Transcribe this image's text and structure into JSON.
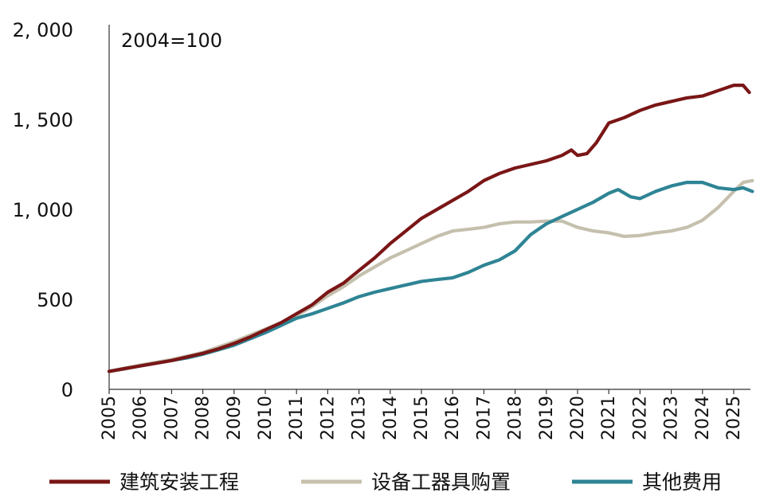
{
  "chart_data": {
    "type": "line",
    "title": "",
    "annotation": "2004=100",
    "xlabel": "",
    "ylabel": "",
    "xlim": [
      2005,
      2025.6
    ],
    "ylim": [
      0,
      2000
    ],
    "y_ticks": [
      {
        "value": 0,
        "label": "0"
      },
      {
        "value": 500,
        "label": "500"
      },
      {
        "value": 1000,
        "label": "1, 000"
      },
      {
        "value": 1500,
        "label": "1, 500"
      },
      {
        "value": 2000,
        "label": "2, 000"
      }
    ],
    "x_ticks": [
      2005,
      2006,
      2007,
      2008,
      2009,
      2010,
      2011,
      2012,
      2013,
      2014,
      2015,
      2016,
      2017,
      2018,
      2019,
      2020,
      2021,
      2022,
      2023,
      2024,
      2025
    ],
    "x_tick_labels": [
      "2005",
      "2006",
      "2007",
      "2008",
      "2009",
      "2010",
      "2011",
      "2012",
      "2013",
      "2014",
      "2015",
      "2016",
      "2017",
      "2018",
      "2019",
      "2020",
      "2021",
      "2022",
      "2023",
      "2024",
      "2025"
    ],
    "grid": false,
    "legend_position": "bottom",
    "series": [
      {
        "name": "建筑安装工程",
        "color": "#7a1616",
        "x": [
          2005,
          2005.5,
          2006,
          2006.5,
          2007,
          2007.5,
          2008,
          2008.5,
          2009,
          2009.5,
          2010,
          2010.5,
          2011,
          2011.5,
          2012,
          2012.5,
          2013,
          2013.5,
          2014,
          2014.5,
          2015,
          2015.5,
          2016,
          2016.5,
          2017,
          2017.5,
          2018,
          2018.5,
          2019,
          2019.5,
          2019.8,
          2020,
          2020.3,
          2020.6,
          2021,
          2021.5,
          2022,
          2022.5,
          2023,
          2023.5,
          2024,
          2024.5,
          2025,
          2025.3,
          2025.5
        ],
        "values": [
          100,
          115,
          130,
          145,
          160,
          180,
          200,
          225,
          255,
          290,
          330,
          370,
          420,
          470,
          540,
          590,
          660,
          730,
          810,
          880,
          950,
          1000,
          1050,
          1100,
          1160,
          1200,
          1230,
          1250,
          1270,
          1300,
          1330,
          1300,
          1310,
          1370,
          1480,
          1510,
          1550,
          1580,
          1600,
          1620,
          1630,
          1660,
          1690,
          1690,
          1650
        ]
      },
      {
        "name": "设备工器具购置",
        "color": "#c5c0ad",
        "x": [
          2005,
          2005.5,
          2006,
          2006.5,
          2007,
          2007.5,
          2008,
          2008.5,
          2009,
          2009.5,
          2010,
          2010.5,
          2011,
          2011.5,
          2012,
          2012.5,
          2013,
          2013.5,
          2014,
          2014.5,
          2015,
          2015.5,
          2016,
          2016.5,
          2017,
          2017.5,
          2018,
          2018.5,
          2019,
          2019.5,
          2020,
          2020.5,
          2021,
          2021.5,
          2022,
          2022.5,
          2023,
          2023.5,
          2024,
          2024.5,
          2025,
          2025.3,
          2025.6
        ],
        "values": [
          100,
          118,
          135,
          150,
          165,
          185,
          205,
          235,
          265,
          300,
          335,
          370,
          410,
          460,
          520,
          570,
          630,
          680,
          730,
          770,
          810,
          850,
          880,
          890,
          900,
          920,
          930,
          930,
          935,
          935,
          900,
          880,
          870,
          850,
          855,
          870,
          880,
          900,
          940,
          1010,
          1100,
          1150,
          1160
        ]
      },
      {
        "name": "其他费用",
        "color": "#2e8494",
        "x": [
          2005,
          2005.5,
          2006,
          2006.5,
          2007,
          2007.5,
          2008,
          2008.5,
          2009,
          2009.5,
          2010,
          2010.5,
          2011,
          2011.5,
          2012,
          2012.5,
          2013,
          2013.5,
          2014,
          2014.5,
          2015,
          2015.5,
          2016,
          2016.5,
          2017,
          2017.5,
          2018,
          2018.5,
          2019,
          2019.5,
          2020,
          2020.5,
          2021,
          2021.3,
          2021.7,
          2022,
          2022.5,
          2023,
          2023.5,
          2024,
          2024.5,
          2025,
          2025.3,
          2025.6
        ],
        "values": [
          100,
          115,
          130,
          145,
          160,
          175,
          195,
          220,
          245,
          280,
          315,
          355,
          395,
          420,
          450,
          480,
          515,
          540,
          560,
          580,
          600,
          610,
          620,
          650,
          690,
          720,
          770,
          860,
          920,
          960,
          1000,
          1040,
          1090,
          1110,
          1070,
          1060,
          1100,
          1130,
          1150,
          1150,
          1120,
          1110,
          1120,
          1100
        ]
      }
    ]
  }
}
